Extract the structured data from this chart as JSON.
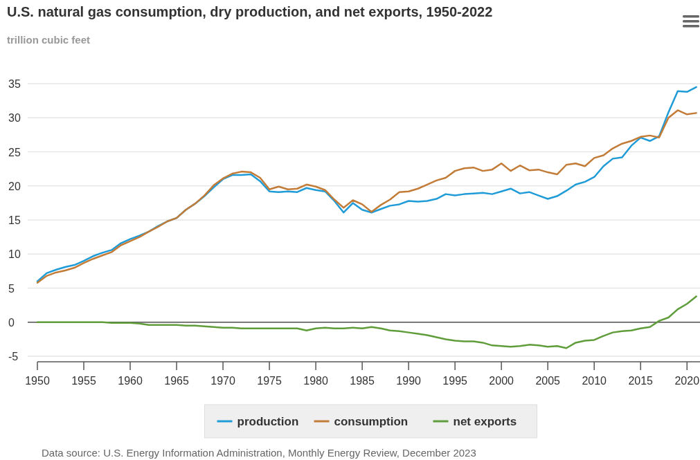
{
  "chart_data": {
    "type": "line",
    "title": "U.S. natural gas consumption, dry production, and net exports, 1950-2022",
    "subtitle": "trillion cubic feet",
    "x": [
      1950,
      1951,
      1952,
      1953,
      1954,
      1955,
      1956,
      1957,
      1958,
      1959,
      1960,
      1961,
      1962,
      1963,
      1964,
      1965,
      1966,
      1967,
      1968,
      1969,
      1970,
      1971,
      1972,
      1973,
      1974,
      1975,
      1976,
      1977,
      1978,
      1979,
      1980,
      1981,
      1982,
      1983,
      1984,
      1985,
      1986,
      1987,
      1988,
      1989,
      1990,
      1991,
      1992,
      1993,
      1994,
      1995,
      1996,
      1997,
      1998,
      1999,
      2000,
      2001,
      2002,
      2003,
      2004,
      2005,
      2006,
      2007,
      2008,
      2009,
      2010,
      2011,
      2012,
      2013,
      2014,
      2015,
      2016,
      2017,
      2018,
      2019,
      2020,
      2021
    ],
    "series": [
      {
        "name": "production",
        "color": "#1f9bd7",
        "values": [
          6.0,
          7.2,
          7.7,
          8.1,
          8.4,
          9.0,
          9.7,
          10.2,
          10.6,
          11.6,
          12.2,
          12.7,
          13.3,
          14.1,
          14.8,
          15.3,
          16.5,
          17.4,
          18.5,
          19.8,
          21.0,
          21.6,
          21.6,
          21.7,
          20.7,
          19.2,
          19.1,
          19.2,
          19.1,
          19.7,
          19.4,
          19.2,
          17.8,
          16.1,
          17.5,
          16.5,
          16.1,
          16.6,
          17.1,
          17.3,
          17.8,
          17.7,
          17.8,
          18.1,
          18.8,
          18.6,
          18.8,
          18.9,
          19.0,
          18.8,
          19.2,
          19.6,
          18.9,
          19.1,
          18.6,
          18.1,
          18.5,
          19.3,
          20.2,
          20.6,
          21.3,
          22.9,
          24.0,
          24.2,
          25.9,
          27.1,
          26.6,
          27.3,
          30.8,
          33.9,
          33.8,
          34.5
        ]
      },
      {
        "name": "consumption",
        "color": "#c27c38",
        "values": [
          5.8,
          6.8,
          7.3,
          7.6,
          8.0,
          8.7,
          9.3,
          9.8,
          10.3,
          11.3,
          11.9,
          12.5,
          13.3,
          14.0,
          14.8,
          15.3,
          16.5,
          17.4,
          18.6,
          20.1,
          21.1,
          21.8,
          22.1,
          22.0,
          21.2,
          19.5,
          19.9,
          19.5,
          19.6,
          20.2,
          19.9,
          19.4,
          18.0,
          16.8,
          17.9,
          17.3,
          16.2,
          17.2,
          18.0,
          19.1,
          19.2,
          19.6,
          20.2,
          20.8,
          21.2,
          22.2,
          22.6,
          22.7,
          22.2,
          22.4,
          23.3,
          22.2,
          23.0,
          22.3,
          22.4,
          22.0,
          21.7,
          23.1,
          23.3,
          22.9,
          24.1,
          24.5,
          25.5,
          26.2,
          26.6,
          27.2,
          27.4,
          27.1,
          30.0,
          31.1,
          30.5,
          30.7
        ]
      },
      {
        "name": "net exports",
        "color": "#5f9c3a",
        "values": [
          0,
          0,
          0,
          0,
          0,
          0,
          0,
          0,
          -0.1,
          -0.1,
          -0.1,
          -0.2,
          -0.4,
          -0.4,
          -0.4,
          -0.4,
          -0.5,
          -0.5,
          -0.6,
          -0.7,
          -0.8,
          -0.8,
          -0.9,
          -0.9,
          -0.9,
          -0.9,
          -0.9,
          -0.9,
          -0.9,
          -1.2,
          -0.9,
          -0.8,
          -0.9,
          -0.9,
          -0.8,
          -0.9,
          -0.7,
          -0.9,
          -1.2,
          -1.3,
          -1.5,
          -1.7,
          -1.9,
          -2.2,
          -2.5,
          -2.7,
          -2.8,
          -2.8,
          -3.0,
          -3.4,
          -3.5,
          -3.6,
          -3.5,
          -3.3,
          -3.4,
          -3.6,
          -3.5,
          -3.8,
          -3.0,
          -2.7,
          -2.6,
          -2.0,
          -1.5,
          -1.3,
          -1.2,
          -0.9,
          -0.7,
          0.2,
          0.7,
          1.9,
          2.7,
          3.8
        ]
      }
    ],
    "xlim": [
      1950,
      2021.4
    ],
    "xticks": [
      1950,
      1955,
      1960,
      1965,
      1970,
      1975,
      1980,
      1985,
      1990,
      1995,
      2000,
      2005,
      2010,
      2015,
      2020
    ],
    "ylim": [
      -5.8,
      35
    ],
    "yticks": [
      -5,
      0,
      5,
      10,
      15,
      20,
      25,
      30,
      35
    ],
    "grid": "y",
    "legend": "bottom",
    "marker": "none",
    "line_style": "solid",
    "ref_lines": [
      {
        "axis": "y",
        "value": 0,
        "color": "#333333"
      }
    ],
    "annotations": [
      "Data source: U.S. Energy Information Administration, Monthly Energy Review, December 2023"
    ]
  }
}
